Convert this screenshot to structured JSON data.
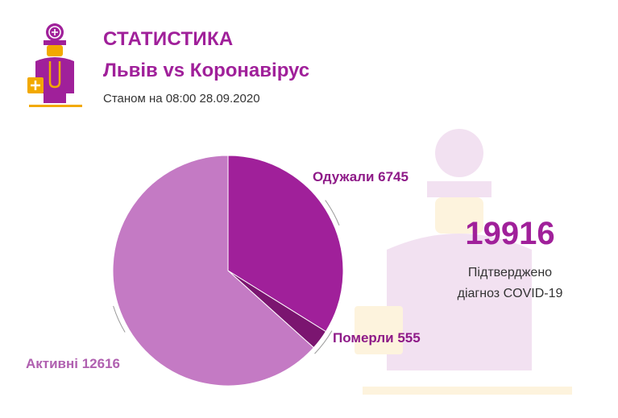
{
  "header": {
    "title": "СТАТИСТИКА",
    "subtitle": "Львів vs Коронавірус",
    "date": "Станом на 08:00 28.09.2020"
  },
  "summary": {
    "total": "19916",
    "caption_line1": "Підтверджено",
    "caption_line2": "діагноз COVID-19"
  },
  "colors": {
    "accent": "#a0209a",
    "recovered": "#a0209a",
    "deaths": "#7b1570",
    "active": "#c47ac4",
    "icon_gold": "#f2a900"
  },
  "chart_data": {
    "type": "pie",
    "title": "",
    "slices": [
      {
        "label": "Одужали",
        "value": 6745,
        "display": "Одужали 6745",
        "color": "#a0209a"
      },
      {
        "label": "Померли",
        "value": 555,
        "display": "Померли 555",
        "color": "#7b1570"
      },
      {
        "label": "Активні",
        "value": 12616,
        "display": "Активні 12616",
        "color": "#c47ac4"
      }
    ]
  }
}
